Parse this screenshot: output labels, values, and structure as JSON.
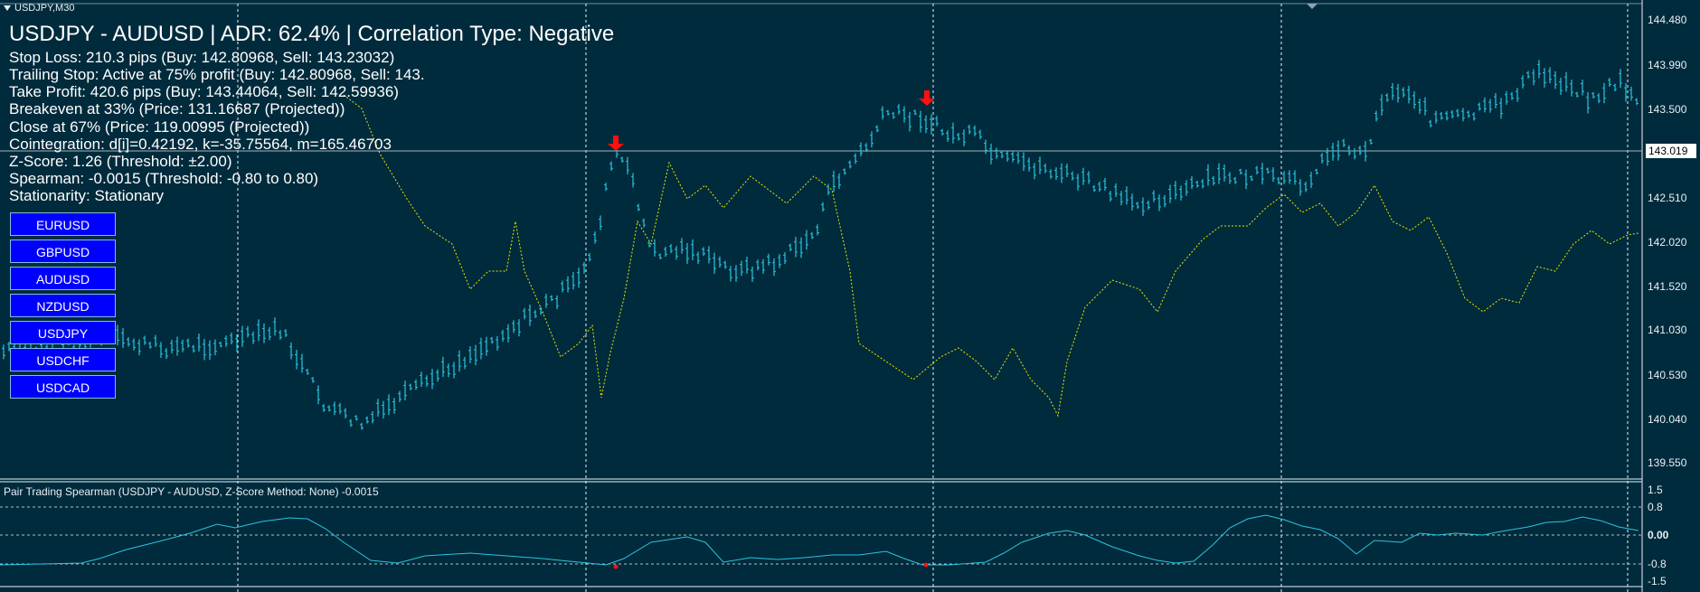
{
  "window": {
    "symbol_title": "USDJPY,M30"
  },
  "header": {
    "title": "USDJPY - AUDUSD | ADR: 62.4% | Correlation Type: Negative"
  },
  "info_lines": [
    "Stop Loss: 210.3 pips (Buy: 142.80968, Sell: 143.23032)",
    "Trailing Stop: Active at 75% profit (Buy: 142.80968, Sell: 143.",
    "Take Profit: 420.6 pips (Buy: 143.44064, Sell: 142.59936)",
    "Breakeven at 33% (Price: 131.16687 (Projected))",
    "Close at 67% (Price: 119.00995 (Projected))",
    "Cointegration: d[i]=0.42192, k=-35.75564, m=165.46703",
    "Z-Score: 1.26 (Threshold: ±2.00)",
    "Spearman: -0.0015 (Threshold: -0.80 to 0.80)",
    "Stationarity: Stationary"
  ],
  "pair_buttons": [
    "EURUSD",
    "GBPUSD",
    "AUDUSD",
    "NZDUSD",
    "USDJPY",
    "USDCHF",
    "USDCAD"
  ],
  "price_axis": [
    "144.480",
    "143.990",
    "143.500",
    "142.510",
    "142.020",
    "141.520",
    "141.030",
    "140.530",
    "140.040",
    "139.550"
  ],
  "current_price": "143.019",
  "subwindow": {
    "title": "Pair Trading Spearman (USDJPY - AUDUSD, Z-Score Method: None) -0.0015",
    "levels": [
      "1.5",
      "0.8",
      "0.00",
      "-0.8",
      "-1.5"
    ]
  },
  "colors": {
    "background": "#002b3c",
    "candles": "#29c5e0",
    "secondary_line": "#e6e600",
    "signal_arrow": "#ff1010",
    "buttons": "#0000ff",
    "grid": "#e8f0f4"
  }
}
